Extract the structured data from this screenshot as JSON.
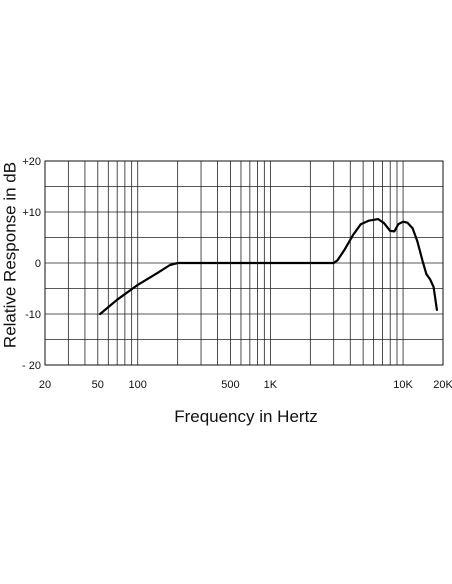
{
  "chart_data": {
    "type": "line",
    "xlabel": "Frequency in Hertz",
    "ylabel": "Relative Response in dB",
    "x_scale": "log",
    "xlim": [
      20,
      20000
    ],
    "ylim": [
      -20,
      20
    ],
    "grid": true,
    "x_ticks": [
      {
        "value": 20,
        "label": "20"
      },
      {
        "value": 50,
        "label": "50"
      },
      {
        "value": 100,
        "label": "100"
      },
      {
        "value": 500,
        "label": "500"
      },
      {
        "value": 1000,
        "label": "1K"
      },
      {
        "value": 10000,
        "label": "10K"
      },
      {
        "value": 20000,
        "label": "20K"
      }
    ],
    "y_ticks": [
      {
        "value": 20,
        "label": "+20"
      },
      {
        "value": 10,
        "label": "+10"
      },
      {
        "value": 0,
        "label": "0"
      },
      {
        "value": -10,
        "label": "-10"
      },
      {
        "value": -20,
        "label": "- 20"
      }
    ],
    "series": [
      {
        "points": [
          [
            52,
            -10
          ],
          [
            70,
            -7.2
          ],
          [
            100,
            -4.3
          ],
          [
            140,
            -2
          ],
          [
            175,
            -0.4
          ],
          [
            200,
            0
          ],
          [
            500,
            0
          ],
          [
            1000,
            0
          ],
          [
            2000,
            0
          ],
          [
            3000,
            0
          ],
          [
            3200,
            0.5
          ],
          [
            3600,
            2.5
          ],
          [
            4200,
            5.5
          ],
          [
            4800,
            7.6
          ],
          [
            5500,
            8.3
          ],
          [
            6500,
            8.6
          ],
          [
            7200,
            7.8
          ],
          [
            8000,
            6.3
          ],
          [
            8600,
            6.2
          ],
          [
            9200,
            7.6
          ],
          [
            10000,
            8.1
          ],
          [
            10800,
            7.9
          ],
          [
            11800,
            6.8
          ],
          [
            12800,
            4.3
          ],
          [
            14000,
            0.5
          ],
          [
            15000,
            -2.2
          ],
          [
            16000,
            -3.2
          ],
          [
            17000,
            -4.7
          ],
          [
            18000,
            -9.2
          ]
        ]
      }
    ]
  }
}
